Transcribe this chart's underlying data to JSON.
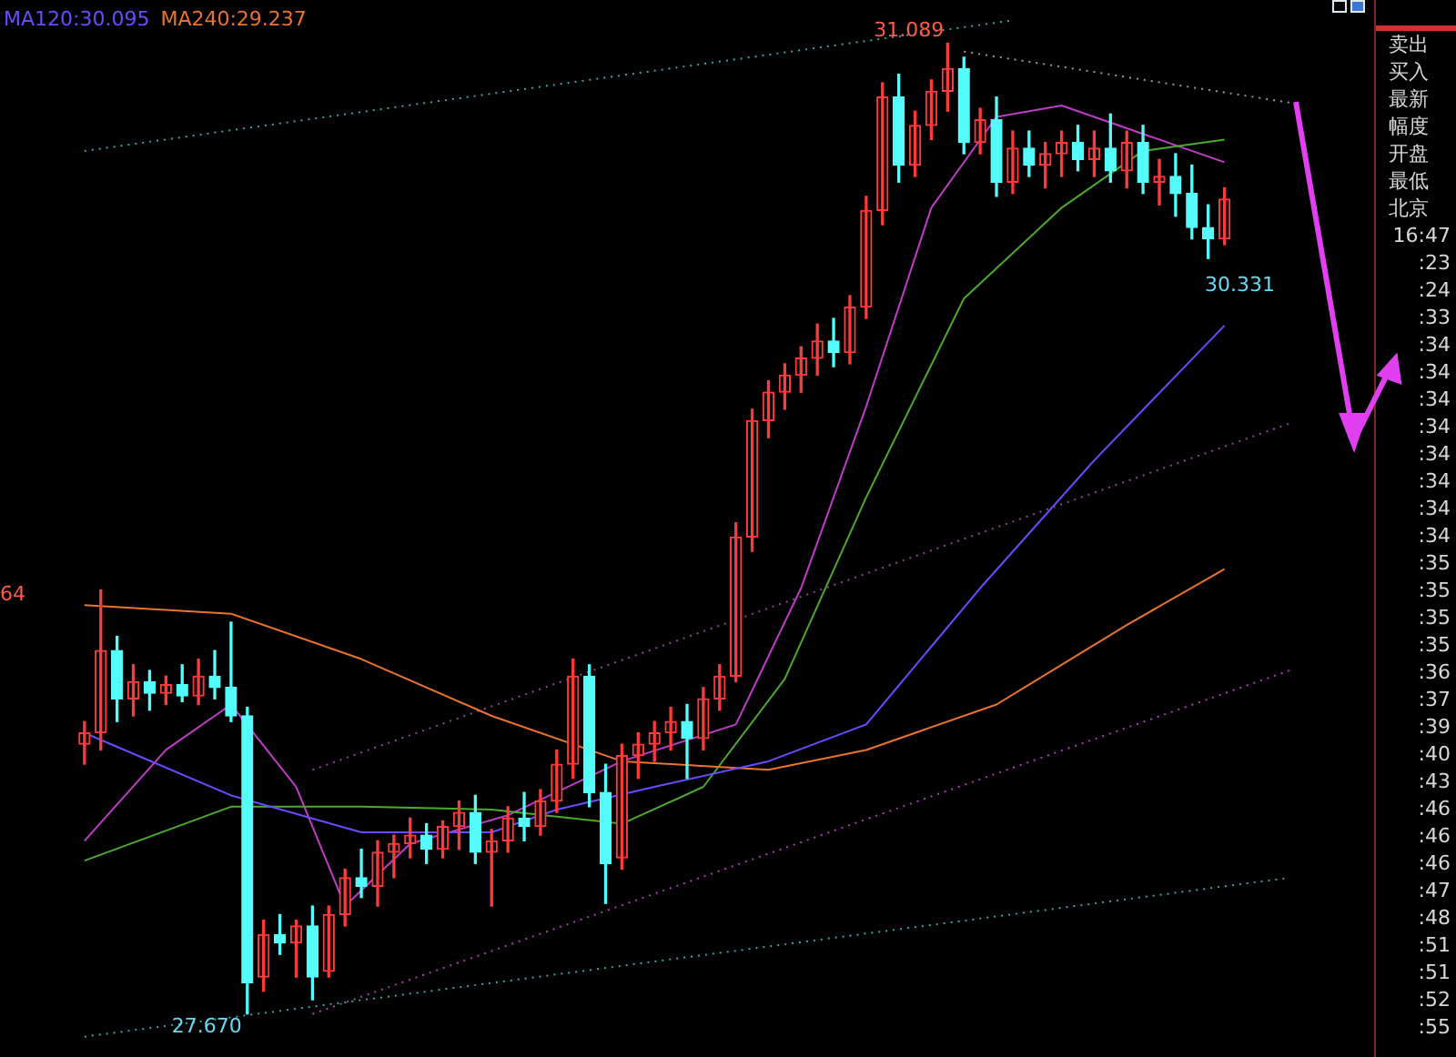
{
  "chart_data": {
    "type": "candlestick",
    "categories": [
      null,
      null,
      null,
      null,
      null,
      null,
      null,
      null,
      null,
      null,
      null,
      null,
      null,
      null,
      null,
      null,
      null,
      null,
      null,
      null,
      null,
      null,
      null,
      null,
      null,
      null,
      null,
      null,
      null,
      null,
      null,
      null,
      null,
      null,
      null,
      null,
      null,
      null,
      null,
      null,
      null,
      null,
      null,
      null,
      null,
      null,
      null,
      null,
      null,
      null,
      null,
      null,
      null,
      null,
      null,
      null,
      null,
      null,
      null,
      null,
      null,
      null,
      null,
      null,
      null,
      null,
      null,
      null,
      null,
      null,
      null,
      null,
      null,
      null,
      null
    ],
    "ohlc": [
      [
        28.62,
        28.7,
        28.55,
        28.66
      ],
      [
        28.66,
        29.164,
        28.6,
        28.95
      ],
      [
        28.95,
        29.0,
        28.7,
        28.78
      ],
      [
        28.78,
        28.9,
        28.72,
        28.84
      ],
      [
        28.84,
        28.88,
        28.74,
        28.8
      ],
      [
        28.8,
        28.86,
        28.76,
        28.83
      ],
      [
        28.83,
        28.9,
        28.77,
        28.79
      ],
      [
        28.79,
        28.92,
        28.76,
        28.86
      ],
      [
        28.86,
        28.95,
        28.78,
        28.82
      ],
      [
        28.82,
        29.05,
        28.7,
        28.72
      ],
      [
        28.72,
        28.75,
        27.67,
        27.78
      ],
      [
        27.8,
        28.0,
        27.75,
        27.95
      ],
      [
        27.95,
        28.02,
        27.88,
        27.92
      ],
      [
        27.92,
        28.0,
        27.8,
        27.98
      ],
      [
        27.98,
        28.05,
        27.72,
        27.8
      ],
      [
        27.82,
        28.05,
        27.8,
        28.02
      ],
      [
        28.02,
        28.18,
        27.98,
        28.15
      ],
      [
        28.15,
        28.25,
        28.08,
        28.12
      ],
      [
        28.12,
        28.28,
        28.05,
        28.24
      ],
      [
        28.24,
        28.3,
        28.15,
        28.27
      ],
      [
        28.27,
        28.36,
        28.22,
        28.3
      ],
      [
        28.3,
        28.34,
        28.2,
        28.25
      ],
      [
        28.25,
        28.35,
        28.22,
        28.33
      ],
      [
        28.33,
        28.42,
        28.25,
        28.38
      ],
      [
        28.38,
        28.44,
        28.2,
        28.24
      ],
      [
        28.24,
        28.32,
        28.05,
        28.28
      ],
      [
        28.28,
        28.4,
        28.24,
        28.36
      ],
      [
        28.36,
        28.45,
        28.28,
        28.33
      ],
      [
        28.33,
        28.46,
        28.3,
        28.42
      ],
      [
        28.42,
        28.6,
        28.38,
        28.55
      ],
      [
        28.55,
        28.92,
        28.5,
        28.86
      ],
      [
        28.86,
        28.9,
        28.4,
        28.45
      ],
      [
        28.45,
        28.55,
        28.06,
        28.2
      ],
      [
        28.22,
        28.62,
        28.18,
        28.58
      ],
      [
        28.58,
        28.66,
        28.5,
        28.62
      ],
      [
        28.62,
        28.7,
        28.56,
        28.66
      ],
      [
        28.66,
        28.75,
        28.6,
        28.7
      ],
      [
        28.7,
        28.76,
        28.5,
        28.64
      ],
      [
        28.64,
        28.82,
        28.6,
        28.78
      ],
      [
        28.78,
        28.9,
        28.74,
        28.86
      ],
      [
        28.86,
        29.4,
        28.84,
        29.35
      ],
      [
        29.35,
        29.8,
        29.3,
        29.76
      ],
      [
        29.76,
        29.9,
        29.7,
        29.86
      ],
      [
        29.86,
        29.96,
        29.8,
        29.92
      ],
      [
        29.92,
        30.02,
        29.86,
        29.98
      ],
      [
        29.98,
        30.1,
        29.92,
        30.04
      ],
      [
        30.04,
        30.12,
        29.95,
        30.0
      ],
      [
        30.0,
        30.2,
        29.96,
        30.16
      ],
      [
        30.16,
        30.55,
        30.12,
        30.5
      ],
      [
        30.5,
        30.95,
        30.45,
        30.9
      ],
      [
        30.9,
        30.98,
        30.6,
        30.66
      ],
      [
        30.66,
        30.85,
        30.62,
        30.8
      ],
      [
        30.8,
        30.96,
        30.75,
        30.92
      ],
      [
        30.92,
        31.089,
        30.85,
        31.0
      ],
      [
        31.0,
        31.04,
        30.7,
        30.74
      ],
      [
        30.74,
        30.86,
        30.7,
        30.82
      ],
      [
        30.82,
        30.9,
        30.55,
        30.6
      ],
      [
        30.6,
        30.78,
        30.56,
        30.72
      ],
      [
        30.72,
        30.78,
        30.62,
        30.66
      ],
      [
        30.66,
        30.74,
        30.58,
        30.7
      ],
      [
        30.7,
        30.78,
        30.62,
        30.74
      ],
      [
        30.74,
        30.8,
        30.64,
        30.68
      ],
      [
        30.68,
        30.78,
        30.62,
        30.72
      ],
      [
        30.72,
        30.84,
        30.6,
        30.64
      ],
      [
        30.64,
        30.78,
        30.58,
        30.74
      ],
      [
        30.74,
        30.8,
        30.56,
        30.6
      ],
      [
        30.6,
        30.68,
        30.52,
        30.62
      ],
      [
        30.62,
        30.7,
        30.48,
        30.56
      ],
      [
        30.56,
        30.66,
        30.4,
        30.44
      ],
      [
        30.44,
        30.52,
        30.331,
        30.4
      ],
      [
        30.4,
        30.58,
        30.38,
        30.54
      ],
      null,
      null,
      null,
      null
    ],
    "colors": [
      "#ff3a3a",
      "#ff3a3a",
      "#54fcfc",
      "#ff3a3a",
      "#54fcfc",
      "#ff3a3a",
      "#54fcfc",
      "#ff3a3a",
      "#54fcfc",
      "#54fcfc",
      "#54fcfc",
      "#ff3a3a",
      "#54fcfc",
      "#ff3a3a",
      "#54fcfc",
      "#ff3a3a",
      "#ff3a3a",
      "#54fcfc",
      "#ff3a3a",
      "#ff3a3a",
      "#ff3a3a",
      "#54fcfc",
      "#ff3a3a",
      "#ff3a3a",
      "#54fcfc",
      "#ff3a3a",
      "#ff3a3a",
      "#54fcfc",
      "#ff3a3a",
      "#ff3a3a",
      "#ff3a3a",
      "#54fcfc",
      "#54fcfc",
      "#ff3a3a",
      "#ff3a3a",
      "#ff3a3a",
      "#ff3a3a",
      "#54fcfc",
      "#ff3a3a",
      "#ff3a3a",
      "#ff3a3a",
      "#ff3a3a",
      "#ff3a3a",
      "#ff3a3a",
      "#ff3a3a",
      "#ff3a3a",
      "#54fcfc",
      "#ff3a3a",
      "#ff3a3a",
      "#ff3a3a",
      "#54fcfc",
      "#ff3a3a",
      "#ff3a3a",
      "#ff3a3a",
      "#54fcfc",
      "#ff3a3a",
      "#54fcfc",
      "#ff3a3a",
      "#54fcfc",
      "#ff3a3a",
      "#ff3a3a",
      "#54fcfc",
      "#ff3a3a",
      "#54fcfc",
      "#ff3a3a",
      "#54fcfc",
      "#ff3a3a",
      "#54fcfc",
      "#54fcfc",
      "#54fcfc",
      "#ff3a3a",
      null,
      null,
      null,
      null
    ],
    "series": [
      {
        "type": "line",
        "name": "MA120:30.095",
        "color": "#6a4cff",
        "values": [
          28.66,
          null,
          null,
          null,
          null,
          null,
          null,
          null,
          null,
          28.44,
          null,
          null,
          null,
          null,
          null,
          null,
          null,
          28.31,
          null,
          null,
          null,
          null,
          null,
          null,
          null,
          28.31,
          null,
          null,
          null,
          28.39,
          null,
          null,
          null,
          null,
          null,
          28.47,
          null,
          null,
          null,
          null,
          null,
          null,
          28.56,
          null,
          null,
          null,
          null,
          null,
          28.69,
          null,
          null,
          null,
          null,
          null,
          null,
          29.17,
          null,
          null,
          null,
          null,
          null,
          null,
          29.62,
          null,
          null,
          null,
          null,
          null,
          null,
          null,
          30.095,
          null,
          null,
          null,
          null
        ]
      },
      {
        "type": "line",
        "name": "MA240:29.237",
        "color": "#e8742f",
        "values": [
          29.11,
          null,
          null,
          null,
          null,
          null,
          null,
          null,
          null,
          29.08,
          null,
          null,
          null,
          null,
          null,
          null,
          null,
          28.92,
          null,
          null,
          null,
          null,
          null,
          null,
          null,
          28.72,
          null,
          null,
          null,
          null,
          null,
          null,
          null,
          28.56,
          null,
          null,
          null,
          null,
          null,
          null,
          null,
          null,
          28.53,
          null,
          null,
          null,
          null,
          null,
          28.6,
          null,
          null,
          null,
          null,
          null,
          null,
          null,
          28.76,
          null,
          null,
          null,
          null,
          null,
          null,
          null,
          29.04,
          null,
          null,
          null,
          null,
          null,
          29.237,
          null,
          null,
          null,
          null
        ]
      },
      {
        "type": "line",
        "color": "#4caa2c",
        "values": [
          28.21,
          null,
          null,
          null,
          null,
          null,
          null,
          null,
          null,
          28.4,
          null,
          null,
          null,
          null,
          null,
          null,
          null,
          28.4,
          null,
          null,
          null,
          null,
          null,
          null,
          null,
          28.39,
          null,
          null,
          null,
          null,
          null,
          null,
          null,
          28.34,
          null,
          null,
          null,
          null,
          28.47,
          null,
          null,
          null,
          null,
          28.85,
          null,
          null,
          null,
          null,
          29.49,
          null,
          null,
          null,
          null,
          null,
          30.19,
          null,
          null,
          null,
          null,
          null,
          30.51,
          null,
          null,
          null,
          null,
          30.71,
          null,
          null,
          null,
          null,
          30.75,
          null,
          null,
          null,
          null
        ]
      },
      {
        "type": "line",
        "color": "#c03cc8",
        "values": [
          28.28,
          null,
          null,
          null,
          null,
          28.6,
          null,
          null,
          null,
          28.76,
          null,
          null,
          null,
          28.47,
          null,
          null,
          28.05,
          null,
          null,
          null,
          28.27,
          null,
          null,
          null,
          null,
          null,
          28.37,
          null,
          null,
          null,
          null,
          null,
          null,
          28.56,
          null,
          null,
          null,
          null,
          null,
          null,
          28.69,
          null,
          null,
          null,
          29.17,
          null,
          null,
          null,
          29.81,
          null,
          null,
          null,
          30.51,
          null,
          null,
          null,
          30.83,
          null,
          null,
          null,
          30.87,
          null,
          null,
          null,
          null,
          30.77,
          null,
          null,
          null,
          null,
          30.67,
          null,
          null,
          null,
          null
        ]
      },
      {
        "type": "line",
        "line_style": "dotted",
        "color": "#3aa8a0",
        "values": [
          30.71,
          null,
          null,
          null,
          null,
          null,
          null,
          null,
          null,
          null,
          null,
          null,
          null,
          null,
          null,
          null,
          null,
          null,
          null,
          null,
          null,
          null,
          null,
          null,
          null,
          null,
          null,
          null,
          null,
          null,
          null,
          null,
          null,
          null,
          null,
          null,
          null,
          null,
          null,
          null,
          null,
          null,
          null,
          null,
          null,
          null,
          null,
          null,
          null,
          null,
          null,
          null,
          null,
          null,
          null,
          null,
          null,
          31.17,
          null,
          null,
          null,
          null,
          null,
          null,
          null,
          null,
          null,
          null,
          null,
          null,
          null,
          null,
          null,
          null,
          null
        ]
      },
      {
        "type": "line",
        "line_style": "dotted",
        "color": "#9a9a9a",
        "values": [
          null,
          null,
          null,
          null,
          null,
          null,
          null,
          null,
          null,
          null,
          null,
          null,
          null,
          null,
          null,
          null,
          null,
          null,
          null,
          null,
          null,
          null,
          null,
          null,
          null,
          null,
          null,
          null,
          null,
          null,
          null,
          null,
          null,
          null,
          null,
          null,
          null,
          null,
          null,
          null,
          null,
          null,
          null,
          null,
          null,
          null,
          null,
          null,
          null,
          null,
          null,
          null,
          null,
          null,
          31.06,
          null,
          null,
          null,
          null,
          null,
          null,
          null,
          null,
          null,
          null,
          null,
          null,
          null,
          null,
          null,
          null,
          null,
          null,
          null,
          30.88
        ]
      },
      {
        "type": "line",
        "line_style": "dotted",
        "color": "#8a4a9a",
        "values": [
          null,
          null,
          null,
          null,
          null,
          null,
          null,
          null,
          null,
          null,
          null,
          null,
          null,
          null,
          28.53,
          null,
          null,
          null,
          null,
          null,
          null,
          null,
          null,
          null,
          null,
          null,
          null,
          null,
          null,
          null,
          null,
          null,
          null,
          null,
          null,
          null,
          null,
          null,
          null,
          null,
          null,
          null,
          null,
          null,
          null,
          null,
          null,
          null,
          null,
          null,
          null,
          null,
          null,
          null,
          null,
          null,
          null,
          null,
          null,
          null,
          null,
          null,
          null,
          null,
          null,
          null,
          null,
          null,
          null,
          null,
          null,
          null,
          null,
          null,
          29.75
        ]
      },
      {
        "type": "line",
        "line_style": "dotted",
        "color": "#b03cb8",
        "values": [
          null,
          null,
          null,
          null,
          null,
          null,
          null,
          null,
          null,
          null,
          null,
          null,
          null,
          null,
          27.67,
          null,
          null,
          null,
          null,
          null,
          null,
          null,
          null,
          null,
          null,
          null,
          null,
          null,
          null,
          null,
          null,
          null,
          null,
          null,
          null,
          null,
          null,
          null,
          null,
          null,
          null,
          null,
          null,
          null,
          null,
          null,
          null,
          null,
          null,
          null,
          null,
          null,
          null,
          null,
          null,
          null,
          null,
          null,
          null,
          null,
          null,
          null,
          null,
          null,
          null,
          null,
          null,
          null,
          null,
          null,
          null,
          null,
          null,
          null,
          28.88
        ]
      },
      {
        "type": "line",
        "line_style": "dotted",
        "color": "#3aa8a0",
        "values": [
          27.59,
          null,
          null,
          null,
          null,
          null,
          null,
          null,
          null,
          null,
          null,
          null,
          null,
          null,
          null,
          null,
          null,
          null,
          null,
          null,
          null,
          null,
          null,
          null,
          null,
          null,
          null,
          null,
          null,
          null,
          null,
          null,
          null,
          null,
          null,
          null,
          null,
          null,
          null,
          null,
          null,
          null,
          null,
          null,
          null,
          null,
          null,
          null,
          null,
          null,
          null,
          null,
          null,
          null,
          null,
          null,
          null,
          null,
          null,
          null,
          null,
          null,
          null,
          null,
          null,
          null,
          null,
          null,
          null,
          null,
          null,
          null,
          null,
          null,
          28.15
        ]
      }
    ],
    "legend": "top left",
    "annotations": [
      {
        "text": "31.089",
        "y": 31.089
      },
      {
        "text": "27.670",
        "y": 27.67
      },
      "30.331",
      "64",
      "卖出",
      "买入",
      "最新",
      "幅度",
      "开盘",
      "最低",
      "北京",
      "16:47",
      ":23",
      ":24",
      ":33",
      ":34",
      ":34",
      ":34",
      ":34",
      ":34",
      ":34",
      ":34",
      ":34",
      ":35",
      ":35",
      ":35",
      ":35",
      ":36",
      ":37",
      ":39",
      ":40",
      ":43",
      ":46",
      ":46",
      ":46",
      ":47",
      ":48",
      ":51",
      ":51",
      ":52",
      ":55"
    ]
  }
}
